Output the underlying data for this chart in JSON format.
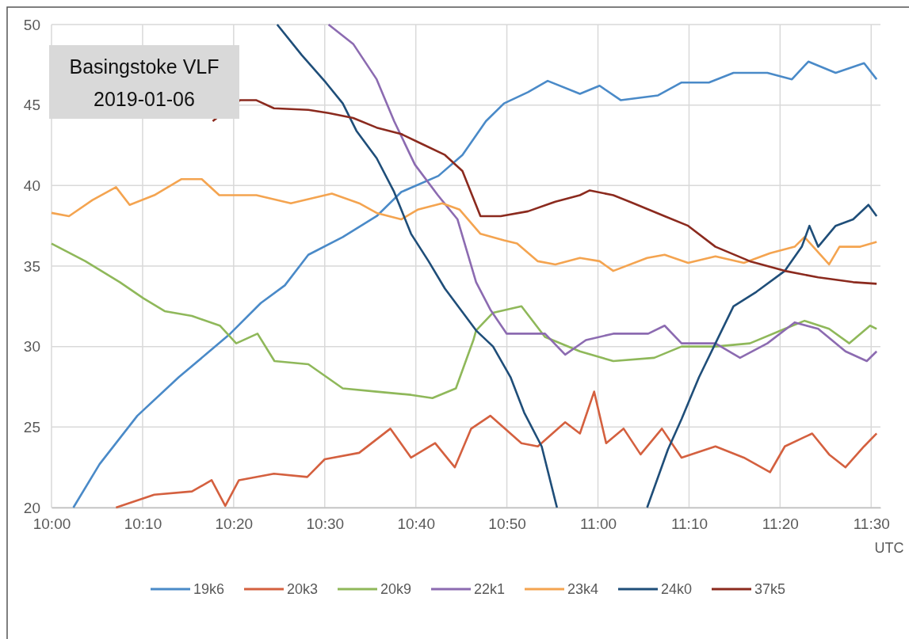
{
  "chart_data": {
    "type": "line",
    "title": "Basingstoke VLF",
    "subtitle": "2019-01-06",
    "xlabel": "UTC",
    "xlim": [
      10,
      11.517
    ],
    "ylim": [
      20,
      50
    ],
    "yticks": [
      20,
      25,
      30,
      35,
      40,
      45,
      50
    ],
    "xticks": [
      {
        "value": 10,
        "label": "10:00"
      },
      {
        "value": 10.1667,
        "label": "10:10"
      },
      {
        "value": 10.3333,
        "label": "10:20"
      },
      {
        "value": 10.5,
        "label": "10:30"
      },
      {
        "value": 10.6667,
        "label": "10:40"
      },
      {
        "value": 10.8333,
        "label": "10:50"
      },
      {
        "value": 11,
        "label": "11:00"
      },
      {
        "value": 11.1667,
        "label": "11:10"
      },
      {
        "value": 11.3333,
        "label": "11:20"
      },
      {
        "value": 11.5,
        "label": "11:30"
      }
    ],
    "grid": true,
    "legend": "bottom",
    "marker": "none",
    "line_style": "solid",
    "series": [
      {
        "name": "19k6",
        "color": "#4a8ac8",
        "x": [
          10.04,
          10.088,
          10.157,
          10.233,
          10.282,
          10.327,
          10.383,
          10.427,
          10.47,
          10.533,
          10.595,
          10.64,
          10.708,
          10.752,
          10.795,
          10.828,
          10.872,
          10.908,
          10.967,
          11.003,
          11.042,
          11.11,
          11.153,
          11.203,
          11.248,
          11.31,
          11.355,
          11.385,
          11.435,
          11.487,
          11.51
        ],
        "values": [
          20,
          22.7,
          25.7,
          28.1,
          29.5,
          30.8,
          32.7,
          33.8,
          35.7,
          36.8,
          38.1,
          39.6,
          40.6,
          41.9,
          44.0,
          45.1,
          45.8,
          46.5,
          45.7,
          46.2,
          45.3,
          45.6,
          46.4,
          46.4,
          47.0,
          47.0,
          46.6,
          47.7,
          47.0,
          47.6,
          46.6
        ]
      },
      {
        "name": "20k3",
        "color": "#d4603f",
        "x": [
          10.118,
          10.188,
          10.257,
          10.293,
          10.318,
          10.343,
          10.407,
          10.468,
          10.5,
          10.563,
          10.62,
          10.658,
          10.702,
          10.738,
          10.768,
          10.803,
          10.86,
          10.89,
          10.94,
          10.967,
          10.993,
          11.015,
          11.047,
          11.078,
          11.117,
          11.153,
          11.215,
          11.267,
          11.315,
          11.342,
          11.392,
          11.423,
          11.453,
          11.487,
          11.51
        ],
        "values": [
          20,
          20.8,
          21.0,
          21.7,
          20.1,
          21.7,
          22.1,
          21.9,
          23.0,
          23.4,
          24.9,
          23.1,
          24.0,
          22.5,
          24.9,
          25.7,
          24.0,
          23.8,
          25.3,
          24.6,
          27.2,
          24.0,
          24.9,
          23.3,
          24.9,
          23.1,
          23.8,
          23.1,
          22.2,
          23.8,
          24.6,
          23.3,
          22.5,
          23.8,
          24.6
        ]
      },
      {
        "name": "20k9",
        "color": "#8fb85a",
        "x": [
          10,
          10.062,
          10.125,
          10.168,
          10.207,
          10.257,
          10.308,
          10.338,
          10.377,
          10.408,
          10.47,
          10.533,
          10.595,
          10.658,
          10.697,
          10.74,
          10.772,
          10.777,
          10.808,
          10.86,
          10.903,
          10.967,
          11.028,
          11.103,
          11.153,
          11.215,
          11.278,
          11.342,
          11.378,
          11.423,
          11.46,
          11.498,
          11.51
        ],
        "values": [
          36.4,
          35.3,
          34.0,
          33.0,
          32.2,
          31.9,
          31.3,
          30.2,
          30.8,
          29.1,
          28.9,
          27.4,
          27.2,
          27.0,
          26.8,
          27.4,
          30.4,
          31.0,
          32.1,
          32.5,
          30.6,
          29.7,
          29.1,
          29.3,
          30.0,
          30.0,
          30.2,
          31.1,
          31.6,
          31.1,
          30.2,
          31.3,
          31.1
        ]
      },
      {
        "name": "22k1",
        "color": "#8c6bb1",
        "x": [
          10.507,
          10.552,
          10.595,
          10.627,
          10.665,
          10.707,
          10.743,
          10.777,
          10.803,
          10.833,
          10.903,
          10.94,
          10.978,
          11.028,
          11.092,
          11.122,
          11.153,
          11.215,
          11.26,
          11.31,
          11.36,
          11.403,
          11.453,
          11.492,
          11.51
        ],
        "values": [
          50,
          48.8,
          46.6,
          44.0,
          41.3,
          39.4,
          37.9,
          34.0,
          32.3,
          30.8,
          30.8,
          29.5,
          30.4,
          30.8,
          30.8,
          31.3,
          30.2,
          30.2,
          29.3,
          30.2,
          31.5,
          31.1,
          29.7,
          29.1,
          29.7
        ]
      },
      {
        "name": "23k4",
        "color": "#f4a450",
        "x": [
          10,
          10.032,
          10.075,
          10.118,
          10.143,
          10.188,
          10.238,
          10.275,
          10.307,
          10.375,
          10.438,
          10.513,
          10.563,
          10.595,
          10.64,
          10.67,
          10.715,
          10.747,
          10.785,
          10.828,
          10.852,
          10.89,
          10.922,
          10.967,
          11.003,
          11.028,
          11.09,
          11.122,
          11.165,
          11.215,
          11.267,
          11.315,
          11.36,
          11.378,
          11.423,
          11.442,
          11.48,
          11.51
        ],
        "values": [
          38.3,
          38.1,
          39.1,
          39.9,
          38.8,
          39.4,
          40.4,
          40.4,
          39.4,
          39.4,
          38.9,
          39.5,
          38.9,
          38.3,
          37.9,
          38.5,
          38.9,
          38.5,
          37.0,
          36.6,
          36.4,
          35.3,
          35.1,
          35.5,
          35.3,
          34.7,
          35.5,
          35.7,
          35.2,
          35.6,
          35.2,
          35.8,
          36.2,
          36.8,
          35.1,
          36.2,
          36.2,
          36.5
        ]
      },
      {
        "name": "24k0",
        "color": "#1f4e79",
        "x": [
          10.413,
          10.458,
          10.502,
          10.533,
          10.558,
          10.595,
          10.627,
          10.658,
          10.69,
          10.72,
          10.777,
          10.808,
          10.84,
          10.865,
          10.897,
          10.922,
          10.925,
          null,
          11.09,
          11.128,
          11.153,
          11.185,
          11.215,
          11.248,
          11.29,
          11.342,
          11.373,
          11.387,
          11.403,
          11.435,
          11.467,
          11.495,
          11.51
        ],
        "values": [
          50,
          48.1,
          46.4,
          45.1,
          43.4,
          41.7,
          39.6,
          37.0,
          35.3,
          33.6,
          31.0,
          30.0,
          28.1,
          25.9,
          23.8,
          20.4,
          20,
          null,
          20,
          23.6,
          25.5,
          28.1,
          30.2,
          32.5,
          33.4,
          34.7,
          36.2,
          37.5,
          36.2,
          37.5,
          37.9,
          38.8,
          38.1
        ]
      },
      {
        "name": "37k5",
        "color": "#8b2a1e",
        "x": [
          10.295,
          10.345,
          10.375,
          10.407,
          10.47,
          10.507,
          10.552,
          10.595,
          10.64,
          10.677,
          10.72,
          10.752,
          10.785,
          10.822,
          10.872,
          10.922,
          10.967,
          10.985,
          11.028,
          11.065,
          11.122,
          11.165,
          11.215,
          11.278,
          11.342,
          11.403,
          11.467,
          11.51
        ],
        "values": [
          44.0,
          45.3,
          45.3,
          44.8,
          44.7,
          44.5,
          44.2,
          43.6,
          43.2,
          42.6,
          41.9,
          40.9,
          38.1,
          38.1,
          38.4,
          39.0,
          39.4,
          39.7,
          39.4,
          38.9,
          38.1,
          37.5,
          36.2,
          35.3,
          34.7,
          34.3,
          34.0,
          33.9
        ]
      }
    ]
  }
}
